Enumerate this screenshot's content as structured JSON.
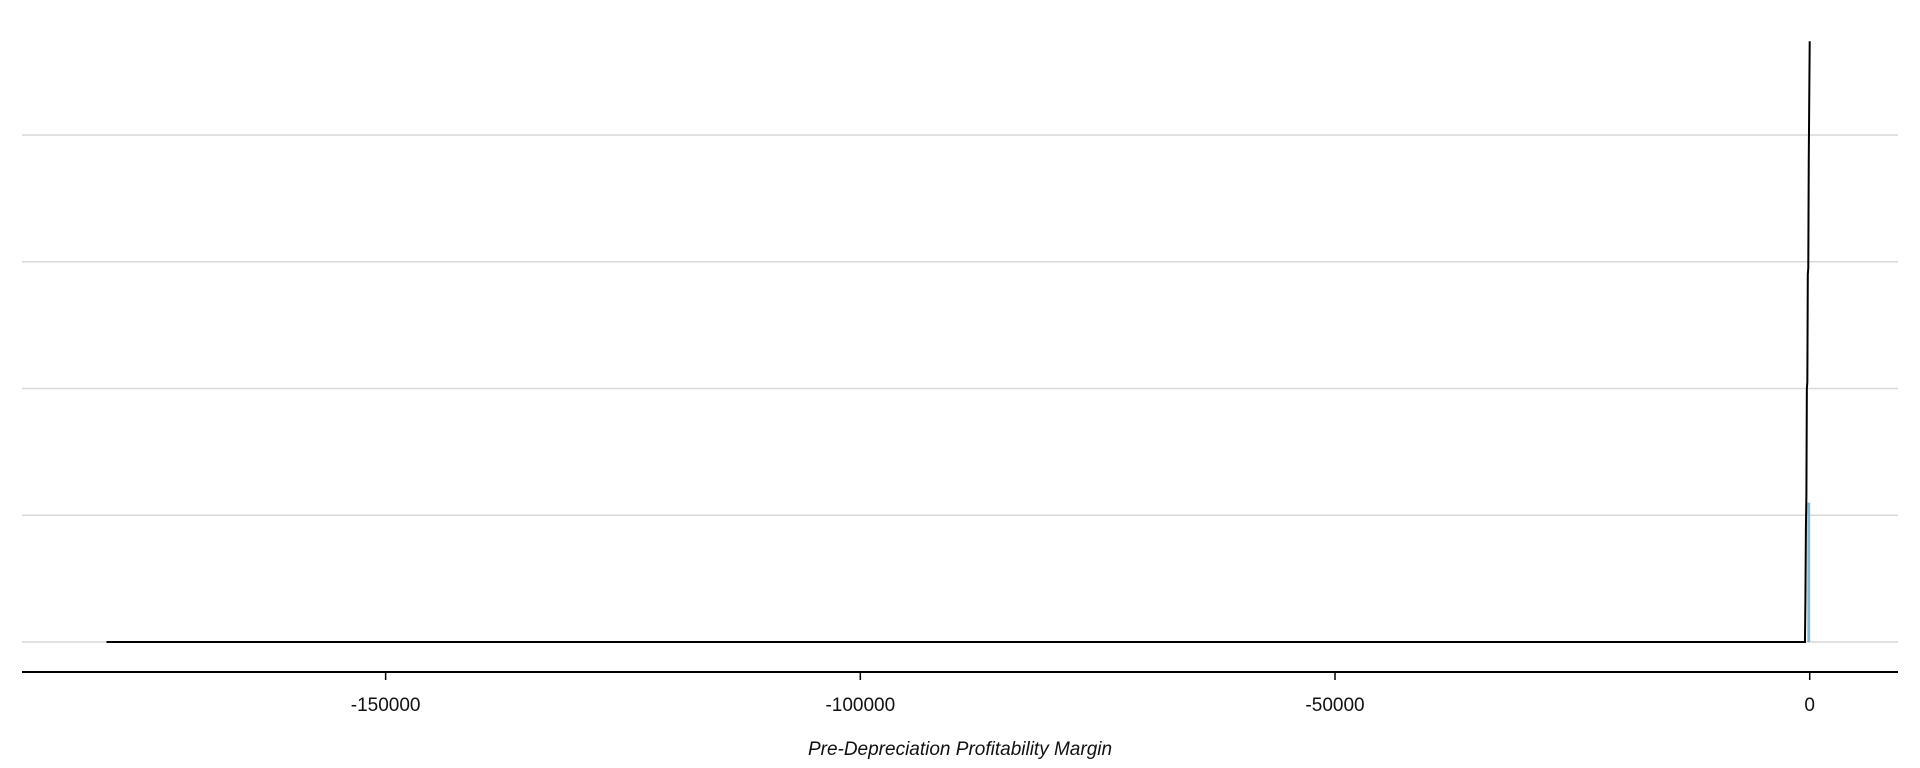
{
  "chart_data": {
    "type": "line",
    "x_label": "Pre-Depreciation Profitability Margin",
    "xlim": [
      -188300,
      9300
    ],
    "xticks": [
      -150000,
      -100000,
      -50000,
      0
    ],
    "ylim": [
      0,
      4.9
    ],
    "yticks": [
      0,
      1,
      2,
      3,
      4
    ],
    "grid": true,
    "series": [
      {
        "color": "#7fb8e0",
        "fill": true,
        "x": [
          -250,
          -250,
          50,
          50
        ],
        "values": [
          0,
          1.1,
          1.1,
          0
        ]
      },
      {
        "color": "#000000",
        "fill": false,
        "x": [
          -179400,
          -500,
          -450,
          -400,
          -350,
          -300,
          -250,
          -200,
          -150,
          -100,
          0
        ],
        "values": [
          0,
          0,
          0.35,
          0.9,
          1.15,
          2.0,
          2.05,
          2.9,
          2.95,
          3.8,
          4.74
        ]
      }
    ]
  }
}
